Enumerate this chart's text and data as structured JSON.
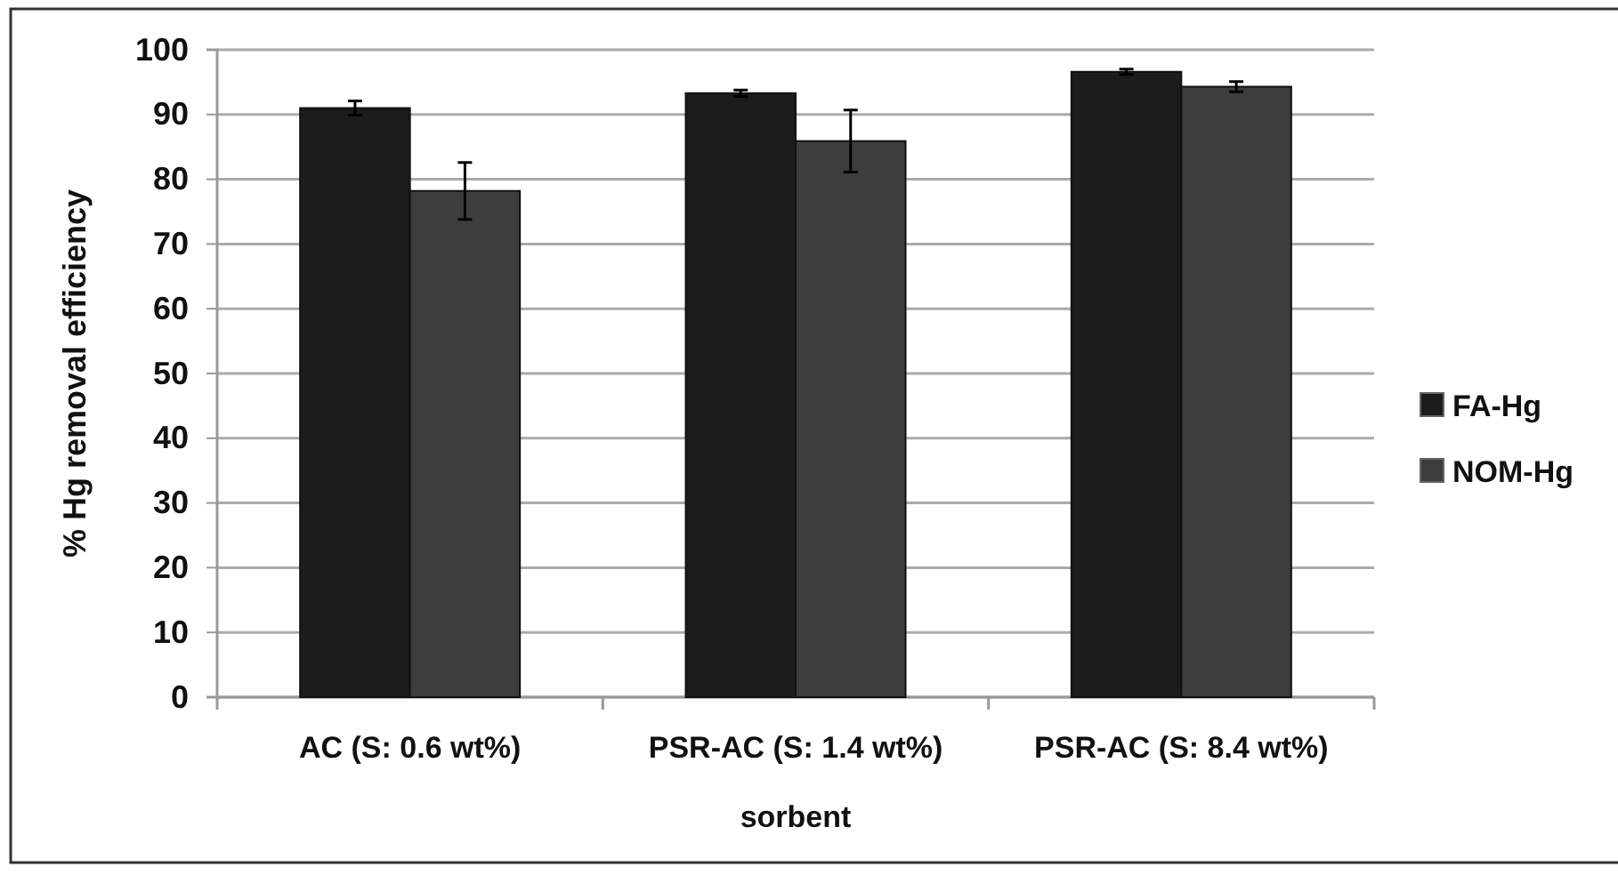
{
  "chart_data": {
    "type": "bar",
    "xlabel": "sorbent",
    "ylabel": "% Hg removal efficiency",
    "categories": [
      "AC (S: 0.6 wt%)",
      "PSR-AC (S: 1.4 wt%)",
      "PSR-AC (S: 8.4 wt%)"
    ],
    "series": [
      {
        "name": "FA-Hg",
        "color": "#1c1c1c",
        "values": [
          91.0,
          93.3,
          96.6
        ],
        "errors": [
          1.1,
          0.5,
          0.4
        ]
      },
      {
        "name": "NOM-Hg",
        "color": "#3d3d3d",
        "values": [
          78.2,
          85.9,
          94.3
        ],
        "errors": [
          4.4,
          4.8,
          0.8
        ]
      }
    ],
    "ylim": [
      0,
      100
    ],
    "yticks": [
      0,
      10,
      20,
      30,
      40,
      50,
      60,
      70,
      80,
      90,
      100
    ],
    "grid": "y",
    "legend": "right"
  }
}
